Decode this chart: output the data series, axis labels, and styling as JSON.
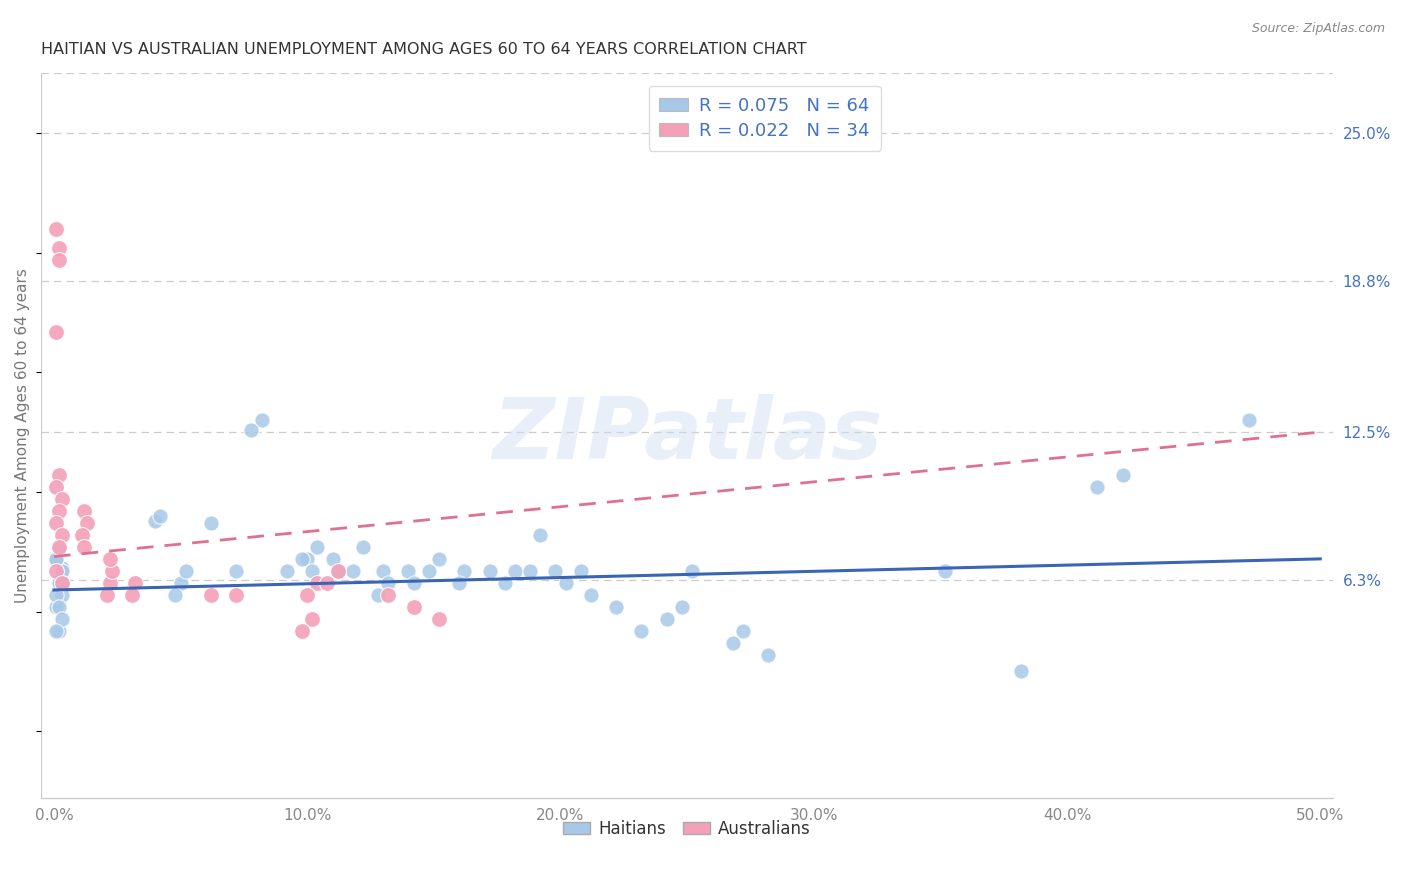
{
  "title": "HAITIAN VS AUSTRALIAN UNEMPLOYMENT AMONG AGES 60 TO 64 YEARS CORRELATION CHART",
  "source": "Source: ZipAtlas.com",
  "xlabel_ticks": [
    "0.0%",
    "10.0%",
    "20.0%",
    "30.0%",
    "40.0%",
    "50.0%"
  ],
  "xlabel_vals": [
    0.0,
    0.1,
    0.2,
    0.3,
    0.4,
    0.5
  ],
  "ylabel": "Unemployment Among Ages 60 to 64 years",
  "right_ytick_labels": [
    "25.0%",
    "18.8%",
    "12.5%",
    "6.3%"
  ],
  "right_ytick_vals": [
    0.25,
    0.188,
    0.125,
    0.063
  ],
  "xlim": [
    -0.005,
    0.505
  ],
  "ylim": [
    -0.028,
    0.275
  ],
  "watermark": "ZIPatlas",
  "haitian_scatter_color": "#a8c8e8",
  "australian_scatter_color": "#f4a0b8",
  "haitian_line_color": "#3a65b5",
  "australian_line_color": "#e07090",
  "title_color": "#333333",
  "label_color": "#4472c4",
  "tick_color": "#888888",
  "background_color": "#ffffff",
  "haitian_points_x": [
    0.002,
    0.003,
    0.001,
    0.002,
    0.003,
    0.001,
    0.002,
    0.003,
    0.001,
    0.002,
    0.003,
    0.001,
    0.002,
    0.003,
    0.001,
    0.04,
    0.042,
    0.05,
    0.052,
    0.048,
    0.062,
    0.072,
    0.082,
    0.078,
    0.092,
    0.1,
    0.102,
    0.098,
    0.104,
    0.112,
    0.11,
    0.122,
    0.118,
    0.13,
    0.132,
    0.128,
    0.14,
    0.142,
    0.152,
    0.148,
    0.162,
    0.16,
    0.172,
    0.182,
    0.178,
    0.192,
    0.188,
    0.202,
    0.198,
    0.212,
    0.208,
    0.222,
    0.232,
    0.242,
    0.252,
    0.248,
    0.272,
    0.268,
    0.282,
    0.352,
    0.382,
    0.412,
    0.422,
    0.472
  ],
  "haitian_points_y": [
    0.063,
    0.068,
    0.072,
    0.076,
    0.057,
    0.052,
    0.062,
    0.067,
    0.072,
    0.042,
    0.062,
    0.057,
    0.052,
    0.047,
    0.042,
    0.088,
    0.09,
    0.062,
    0.067,
    0.057,
    0.087,
    0.067,
    0.13,
    0.126,
    0.067,
    0.072,
    0.067,
    0.072,
    0.077,
    0.067,
    0.072,
    0.077,
    0.067,
    0.067,
    0.062,
    0.057,
    0.067,
    0.062,
    0.072,
    0.067,
    0.067,
    0.062,
    0.067,
    0.067,
    0.062,
    0.082,
    0.067,
    0.062,
    0.067,
    0.057,
    0.067,
    0.052,
    0.042,
    0.047,
    0.067,
    0.052,
    0.042,
    0.037,
    0.032,
    0.067,
    0.025,
    0.102,
    0.107,
    0.13
  ],
  "australian_points_x": [
    0.001,
    0.002,
    0.002,
    0.001,
    0.002,
    0.001,
    0.003,
    0.002,
    0.001,
    0.003,
    0.002,
    0.001,
    0.003,
    0.012,
    0.013,
    0.011,
    0.012,
    0.022,
    0.021,
    0.023,
    0.022,
    0.032,
    0.031,
    0.062,
    0.072,
    0.102,
    0.098,
    0.104,
    0.1,
    0.112,
    0.108,
    0.132,
    0.142,
    0.152
  ],
  "australian_points_y": [
    0.21,
    0.202,
    0.197,
    0.167,
    0.107,
    0.102,
    0.097,
    0.092,
    0.087,
    0.082,
    0.077,
    0.067,
    0.062,
    0.092,
    0.087,
    0.082,
    0.077,
    0.062,
    0.057,
    0.067,
    0.072,
    0.062,
    0.057,
    0.057,
    0.057,
    0.047,
    0.042,
    0.062,
    0.057,
    0.067,
    0.062,
    0.057,
    0.052,
    0.047
  ],
  "haitian_trend_x": [
    0.0,
    0.5
  ],
  "haitian_trend_y": [
    0.059,
    0.072
  ],
  "australian_trend_x": [
    0.0,
    0.5
  ],
  "australian_trend_y": [
    0.073,
    0.125
  ]
}
